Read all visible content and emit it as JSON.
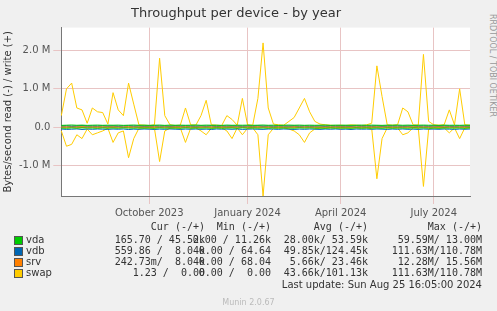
{
  "chart_data": {
    "type": "line",
    "title": "Throughput per device - by year",
    "y_label": "Bytes/second read (-) / write (+)",
    "categories": [
      null,
      null,
      null,
      null,
      null,
      null,
      null,
      null,
      null,
      null,
      null,
      null,
      null,
      null,
      null,
      null,
      null,
      "October 2023",
      null,
      null,
      null,
      null,
      null,
      null,
      null,
      null,
      null,
      null,
      null,
      null,
      null,
      null,
      null,
      null,
      null,
      null,
      "January 2024",
      null,
      null,
      null,
      null,
      null,
      null,
      null,
      null,
      null,
      null,
      null,
      null,
      null,
      null,
      null,
      null,
      null,
      "April 2024",
      null,
      null,
      null,
      null,
      null,
      null,
      null,
      null,
      null,
      null,
      null,
      null,
      null,
      null,
      null,
      null,
      null,
      "July 2024",
      null,
      null,
      null,
      null,
      null,
      null,
      null
    ],
    "series": [
      {
        "name": "vda",
        "color": "#00cc00",
        "values": [
          45000,
          50000,
          55000,
          48000,
          52000,
          46000,
          50000,
          53000,
          47000,
          51000,
          49000,
          52000,
          46000,
          50000,
          54000,
          48000,
          51000,
          47000,
          50000,
          53000,
          46000,
          52000,
          49000,
          51000,
          48000,
          50000,
          55000,
          47000,
          52000,
          49000,
          50000,
          46000,
          53000,
          48000,
          51000,
          49000,
          52000,
          47000,
          50000,
          54000,
          48000,
          51000,
          46000,
          50000,
          53000,
          49000,
          52000,
          47000,
          51000,
          48000,
          50000,
          54000,
          46000,
          52000,
          49000,
          51000,
          47000,
          50000,
          53000,
          48000,
          52000,
          49000,
          46000,
          51000,
          50000,
          54000,
          48000,
          52000,
          47000,
          50000,
          53000,
          49000,
          51000,
          46000,
          52000,
          48000,
          50000,
          47000,
          51000,
          49000
        ],
        "read": [
          -25000,
          -30000,
          -22000,
          -28000,
          -20000,
          -26000,
          -24000,
          -30000,
          -21000,
          -27000,
          -23000,
          -29000,
          -20000,
          -25000,
          -28000,
          -22000,
          -26000,
          -24000,
          -30000,
          -21000,
          -27000,
          -23000,
          -25000,
          -29000,
          -20000,
          -26000,
          -22000,
          -28000,
          -24000,
          -30000,
          -21000,
          -27000,
          -25000,
          -23000,
          -29000,
          -20000,
          -26000,
          -22000,
          -28000,
          -24000,
          -30000,
          -21000,
          -27000,
          -23000,
          -25000,
          -29000,
          -20000,
          -26000,
          -22000,
          -28000,
          -24000,
          -30000,
          -21000,
          -27000,
          -23000,
          -25000,
          -29000,
          -20000,
          -26000,
          -22000,
          -28000,
          -24000,
          -30000,
          -21000,
          -27000,
          -23000,
          -25000,
          -29000,
          -20000,
          -26000,
          -22000,
          -28000,
          -24000,
          -30000,
          -21000,
          -27000,
          -23000,
          -25000,
          -29000,
          -20000
        ]
      },
      {
        "name": "vdb",
        "color": "#0066b3",
        "values": [
          30000,
          35000,
          28000,
          32000,
          40000,
          29000,
          33000,
          31000,
          36000,
          30000,
          34000,
          28000,
          32000,
          38000,
          30000,
          33000,
          29000,
          31000,
          35000,
          30000,
          32000,
          28000,
          34000,
          30000,
          36000,
          31000,
          29000,
          33000,
          30000,
          35000,
          28000,
          32000,
          31000,
          34000,
          30000,
          29000,
          33000,
          31000,
          36000,
          30000,
          32000,
          28000,
          34000,
          31000,
          30000,
          35000,
          29000,
          33000,
          31000,
          30000,
          32000,
          28000,
          34000,
          30000,
          33000,
          31000,
          29000,
          35000,
          30000,
          32000,
          31000,
          34000,
          28000,
          33000,
          30000,
          32000,
          29000,
          31000,
          35000,
          30000,
          33000,
          28000,
          32000,
          31000,
          34000,
          30000,
          29000,
          33000,
          31000,
          30000
        ],
        "read": [
          -50000,
          -60000,
          -55000,
          -48000,
          -62000,
          -52000,
          -57000,
          -50000,
          -54000,
          -59000,
          -51000,
          -56000,
          -49000,
          -63000,
          -53000,
          -58000,
          -50000,
          -55000,
          -61000,
          -52000,
          -57000,
          -49000,
          -54000,
          -60000,
          -51000,
          -56000,
          -50000,
          -58000,
          -53000,
          -62000,
          -49000,
          -55000,
          -52000,
          -57000,
          -50000,
          -60000,
          -54000,
          -51000,
          -56000,
          -59000,
          -50000,
          -53000,
          -58000,
          -49000,
          -55000,
          -61000,
          -52000,
          -57000,
          -50000,
          -54000,
          -60000,
          -51000,
          -56000,
          -49000,
          -58000,
          -53000,
          -62000,
          -50000,
          -55000,
          -52000,
          -57000,
          -50000,
          -54000,
          -59000,
          -51000,
          -56000,
          -49000,
          -58000,
          -53000,
          -60000,
          -50000,
          -55000,
          -52000,
          -57000,
          -50000,
          -54000,
          -59000,
          -51000,
          -56000,
          -50000
        ]
      },
      {
        "name": "srv",
        "color": "#ff8000",
        "values": [
          20000,
          22000,
          18000,
          21000,
          19000,
          23000,
          20000,
          18000,
          22000,
          21000,
          19000,
          20000,
          23000,
          18000,
          21000,
          22000,
          19000,
          20000,
          18000,
          23000,
          21000,
          20000,
          19000,
          22000,
          18000,
          21000,
          20000,
          23000,
          19000,
          22000,
          18000,
          20000,
          21000,
          19000,
          23000,
          20000,
          22000,
          18000,
          21000,
          19000,
          20000,
          23000,
          18000,
          22000,
          21000,
          19000,
          20000,
          22000,
          18000,
          21000,
          23000,
          19000,
          20000,
          22000,
          18000,
          21000,
          19000,
          23000,
          20000,
          22000,
          18000,
          21000,
          20000,
          19000,
          23000,
          22000,
          18000,
          20000,
          21000,
          19000,
          22000,
          20000,
          23000,
          18000,
          21000,
          19000,
          20000,
          22000,
          18000,
          21000
        ],
        "read": [
          -5000,
          -6000,
          -4000,
          -5000,
          -7000,
          -5000,
          -4000,
          -6000,
          -5000,
          -5000,
          -6000,
          -4000,
          -7000,
          -5000,
          -5000,
          -6000,
          -4000,
          -5000,
          -7000,
          -5000,
          -4000,
          -6000,
          -5000,
          -5000,
          -6000,
          -4000,
          -7000,
          -5000,
          -5000,
          -6000,
          -4000,
          -5000,
          -7000,
          -5000,
          -4000,
          -6000,
          -5000,
          -5000,
          -6000,
          -4000,
          -7000,
          -5000,
          -5000,
          -6000,
          -4000,
          -5000,
          -7000,
          -5000,
          -4000,
          -6000,
          -5000,
          -5000,
          -6000,
          -4000,
          -7000,
          -5000,
          -5000,
          -6000,
          -4000,
          -5000,
          -7000,
          -5000,
          -4000,
          -6000,
          -5000,
          -5000,
          -6000,
          -4000,
          -7000,
          -5000,
          -5000,
          -6000,
          -4000,
          -5000,
          -7000,
          -5000,
          -4000,
          -6000,
          -5000,
          -5000
        ]
      },
      {
        "name": "swap",
        "color": "#ffcc00",
        "values": [
          300000,
          1000000,
          1150000,
          500000,
          450000,
          100000,
          500000,
          400000,
          380000,
          80000,
          900000,
          450000,
          300000,
          1150000,
          600000,
          60000,
          50000,
          40000,
          60000,
          1800000,
          300000,
          60000,
          40000,
          50000,
          500000,
          60000,
          50000,
          300000,
          700000,
          60000,
          50000,
          40000,
          300000,
          200000,
          50000,
          750000,
          60000,
          50000,
          750000,
          2200000,
          500000,
          80000,
          60000,
          50000,
          150000,
          250000,
          500000,
          750000,
          400000,
          150000,
          80000,
          60000,
          50000,
          40000,
          50000,
          40000,
          60000,
          50000,
          40000,
          60000,
          100000,
          1600000,
          800000,
          60000,
          50000,
          60000,
          500000,
          400000,
          60000,
          50000,
          1900000,
          150000,
          60000,
          50000,
          60000,
          450000,
          60000,
          1000000,
          60000,
          50000
        ],
        "read": [
          -100000,
          -500000,
          -450000,
          -200000,
          -300000,
          -50000,
          -200000,
          -150000,
          -100000,
          -30000,
          -400000,
          -150000,
          -100000,
          -800000,
          -300000,
          -30000,
          -20000,
          -20000,
          -30000,
          -900000,
          -100000,
          -30000,
          -20000,
          -20000,
          -400000,
          -30000,
          -20000,
          -100000,
          -200000,
          -30000,
          -20000,
          -20000,
          -100000,
          -300000,
          -20000,
          -200000,
          -30000,
          -20000,
          -200000,
          -1800000,
          -200000,
          -30000,
          -20000,
          -20000,
          -50000,
          -100000,
          -200000,
          -400000,
          -150000,
          -50000,
          -30000,
          -20000,
          -25000,
          -20000,
          -30000,
          -20000,
          -25000,
          -20000,
          -30000,
          -20000,
          -40000,
          -1350000,
          -300000,
          -20000,
          -20000,
          -20000,
          -200000,
          -150000,
          -20000,
          -20000,
          -1550000,
          -50000,
          -20000,
          -20000,
          -20000,
          -150000,
          -20000,
          -300000,
          -20000,
          -20000
        ]
      }
    ],
    "ylim": [
      -1800000,
      2600000
    ],
    "yticks": [
      {
        "value": -1000000,
        "label": "-1.0 M"
      },
      {
        "value": 0,
        "label": "0.0"
      },
      {
        "value": 1000000,
        "label": "1.0 M"
      },
      {
        "value": 2000000,
        "label": "2.0 M"
      }
    ],
    "grid": true,
    "stats_table": {
      "columns": [
        "Cur (-/+)",
        "Min (-/+)",
        "Avg (-/+)",
        "Max (-/+)"
      ],
      "rows": [
        {
          "name": "vda",
          "cells": [
            "165.70 / 45.52k",
            "0.00 / 11.26k",
            "28.00k/ 53.59k",
            "59.59M/ 13.00M"
          ]
        },
        {
          "name": "vdb",
          "cells": [
            "559.86 /  8.04k",
            "0.00 / 64.64",
            "49.85k/124.45k",
            "111.63M/110.78M"
          ]
        },
        {
          "name": "srv",
          "cells": [
            "242.73m/  8.04k",
            "0.00 / 68.04",
            "5.66k/ 23.46k",
            "12.28M/ 15.56M"
          ]
        },
        {
          "name": "swap",
          "cells": [
            "1.23 /  0.00",
            "0.00 /  0.00",
            "43.66k/101.13k",
            "111.63M/110.78M"
          ]
        }
      ]
    },
    "side_text": "RRDTOOL / TOBI OETIKER",
    "footer": "Last update: Sun Aug 25 16:05:00 2024",
    "credit": "Munin 2.0.67"
  }
}
